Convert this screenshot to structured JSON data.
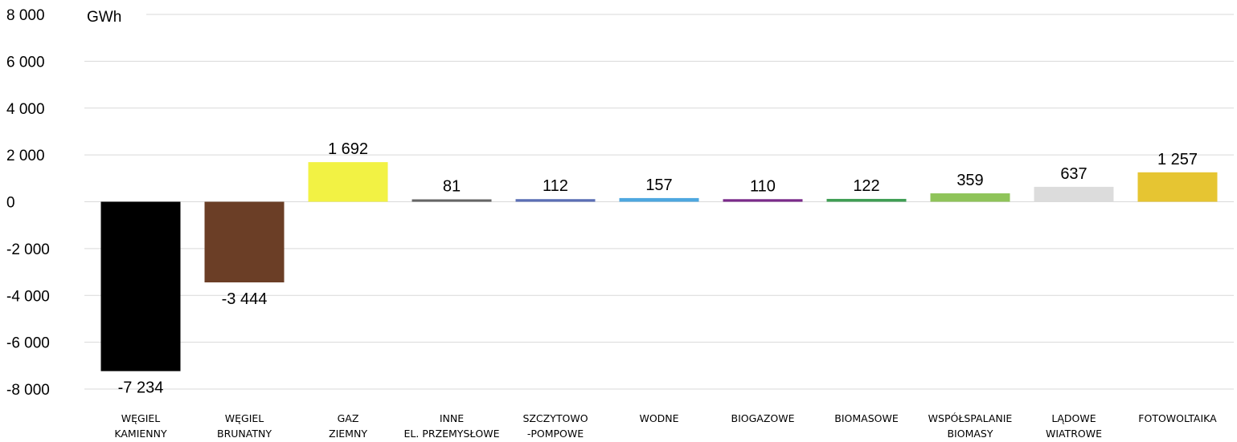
{
  "chart_data": {
    "type": "bar",
    "unit_label": "GWh",
    "categories": [
      [
        "WĘGIEL",
        "KAMIENNY"
      ],
      [
        "WĘGIEL",
        "BRUNATNY"
      ],
      [
        "GAZ",
        "ZIEMNY"
      ],
      [
        "INNE",
        "EL. PRZEMYSŁOWE"
      ],
      [
        "SZCZYTOWO",
        "-POMPOWE"
      ],
      [
        "WODNE"
      ],
      [
        "BIOGAZOWE"
      ],
      [
        "BIOMASOWE"
      ],
      [
        "WSPÓŁSPALANIE",
        "BIOMASY"
      ],
      [
        "LĄDOWE",
        "WIATROWE"
      ],
      [
        "FOTOWOLTAIKA"
      ]
    ],
    "values": [
      -7234,
      -3444,
      1692,
      81,
      112,
      157,
      110,
      122,
      359,
      637,
      1257
    ],
    "value_labels": [
      "-7 234",
      "-3 444",
      "1 692",
      "81",
      "112",
      "157",
      "110",
      "122",
      "359",
      "637",
      "1 257"
    ],
    "colors": [
      "#000000",
      "#6b3e26",
      "#f2f244",
      "#666666",
      "#5b6fb5",
      "#4ea7df",
      "#7a2a8a",
      "#3f9e54",
      "#8fc45a",
      "#dcdcdc",
      "#e6c532"
    ],
    "ylim": [
      -8000,
      8000
    ],
    "yticks": [
      8000,
      6000,
      4000,
      2000,
      0,
      -2000,
      -4000,
      -6000,
      -8000
    ],
    "ytick_labels": [
      "8 000",
      "6 000",
      "4 000",
      "2 000",
      "0",
      "-2 000",
      "-4 000",
      "-6 000",
      "-8 000"
    ],
    "grid": true,
    "gridline_color": "#d9d9d9",
    "title": "",
    "xlabel": "",
    "ylabel": ""
  }
}
